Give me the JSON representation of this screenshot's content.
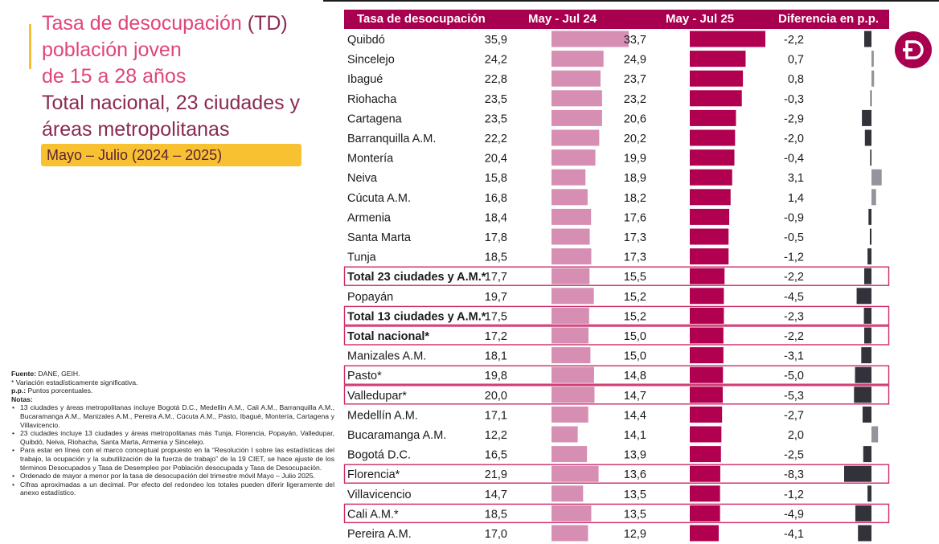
{
  "title": {
    "line1_pink": "Tasa de desocupación",
    "line1_dark": " (TD)",
    "line2": "población joven",
    "line3": "de 15 a 28 años",
    "line4": "Total nacional, 23 ciudades y",
    "line5": "áreas metropolitanas"
  },
  "period_label": "Mayo – Julio (2024 – 2025)",
  "notes": {
    "fuente_label": "Fuente:",
    "fuente_text": " DANE, GEIH.",
    "asterisk_text": "* Variación estadísticamente significativa.",
    "pp_label": "p.p.:",
    "pp_text": " Puntos porcentuales.",
    "notas_label": "Notas:",
    "bullet_symbol": "•",
    "items": [
      "13 ciudades y áreas metropolitanas incluye Bogotá D.C., Medellín A.M., Cali A.M., Barranquilla A.M., Bucaramanga A.M., Manizales A.M., Pereira A.M., Cúcuta A.M., Pasto, Ibagué, Montería, Cartagena y Villavicencio.",
      "23 ciudades incluye 13 ciudades y áreas metropolitanas más Tunja, Florencia, Popayán, Valledupar, Quibdó, Neiva, Riohacha, Santa Marta, Armenia y Sincelejo.",
      "Para estar en línea con el marco conceptual propuesto en la “Resolución I sobre las estadísticas del trabajo, la ocupación y la subutilización de la fuerza de trabajo” de la 19 CIET, se hace ajuste de los términos Desocupados y Tasa de Desempleo por Población desocupada y Tasa de Desocupación.",
      "Ordenado de mayor a menor por la tasa de desocupación del trimestre móvil Mayo – Julio 2025.",
      "Cifras aproximadas a un decimal. Por efecto del redondeo los totales pueden diferir ligeramente del anexo estadístico."
    ]
  },
  "chart_data": {
    "type": "bar",
    "columns": {
      "label": "Tasa de desocupación",
      "prev": "May - Jul 24",
      "curr": "May - Jul 25",
      "diff": "Diferencia en p.p."
    },
    "colors": {
      "header": "#a8004f",
      "prev_bar": "#d68fb3",
      "curr_bar": "#b0004f",
      "diff_neg": "#32323a",
      "diff_pos": "#95939b",
      "highlight_border": "#cc2b68"
    },
    "rows": [
      {
        "label": "Quibdó",
        "prev": "35,9",
        "curr": "33,7",
        "diff": "-2,2",
        "bold": false,
        "highlight": false
      },
      {
        "label": "Sincelejo",
        "prev": "24,2",
        "curr": "24,9",
        "diff": "0,7",
        "bold": false,
        "highlight": false
      },
      {
        "label": "Ibagué",
        "prev": "22,8",
        "curr": "23,7",
        "diff": "0,8",
        "bold": false,
        "highlight": false
      },
      {
        "label": "Riohacha",
        "prev": "23,5",
        "curr": "23,2",
        "diff": "-0,3",
        "bold": false,
        "highlight": false
      },
      {
        "label": "Cartagena",
        "prev": "23,5",
        "curr": "20,6",
        "diff": "-2,9",
        "bold": false,
        "highlight": false
      },
      {
        "label": "Barranquilla A.M.",
        "prev": "22,2",
        "curr": "20,2",
        "diff": "-2,0",
        "bold": false,
        "highlight": false
      },
      {
        "label": "Montería",
        "prev": "20,4",
        "curr": "19,9",
        "diff": "-0,4",
        "bold": false,
        "highlight": false
      },
      {
        "label": "Neiva",
        "prev": "15,8",
        "curr": "18,9",
        "diff": "3,1",
        "bold": false,
        "highlight": false
      },
      {
        "label": "Cúcuta A.M.",
        "prev": "16,8",
        "curr": "18,2",
        "diff": "1,4",
        "bold": false,
        "highlight": false
      },
      {
        "label": "Armenia",
        "prev": "18,4",
        "curr": "17,6",
        "diff": "-0,9",
        "bold": false,
        "highlight": false
      },
      {
        "label": "Santa Marta",
        "prev": "17,8",
        "curr": "17,3",
        "diff": "-0,5",
        "bold": false,
        "highlight": false
      },
      {
        "label": "Tunja",
        "prev": "18,5",
        "curr": "17,3",
        "diff": "-1,2",
        "bold": false,
        "highlight": false
      },
      {
        "label": "Total 23 ciudades y A.M.*",
        "prev": "17,7",
        "curr": "15,5",
        "diff": "-2,2",
        "bold": true,
        "highlight": true
      },
      {
        "label": "Popayán",
        "prev": "19,7",
        "curr": "15,2",
        "diff": "-4,5",
        "bold": false,
        "highlight": false
      },
      {
        "label": "Total 13 ciudades y A.M.*",
        "prev": "17,5",
        "curr": "15,2",
        "diff": "-2,3",
        "bold": true,
        "highlight": true
      },
      {
        "label": "Total nacional*",
        "prev": "17,2",
        "curr": "15,0",
        "diff": "-2,2",
        "bold": true,
        "highlight": true
      },
      {
        "label": "Manizales A.M.",
        "prev": "18,1",
        "curr": "15,0",
        "diff": "-3,1",
        "bold": false,
        "highlight": false
      },
      {
        "label": "Pasto*",
        "prev": "19,8",
        "curr": "14,8",
        "diff": "-5,0",
        "bold": false,
        "highlight": true
      },
      {
        "label": "Valledupar*",
        "prev": "20,0",
        "curr": "14,7",
        "diff": "-5,3",
        "bold": false,
        "highlight": true
      },
      {
        "label": "Medellín A.M.",
        "prev": "17,1",
        "curr": "14,4",
        "diff": "-2,7",
        "bold": false,
        "highlight": false
      },
      {
        "label": "Bucaramanga A.M.",
        "prev": "12,2",
        "curr": "14,1",
        "diff": "2,0",
        "bold": false,
        "highlight": false
      },
      {
        "label": "Bogotá D.C.",
        "prev": "16,5",
        "curr": "13,9",
        "diff": "-2,5",
        "bold": false,
        "highlight": false
      },
      {
        "label": "Florencia*",
        "prev": "21,9",
        "curr": "13,6",
        "diff": "-8,3",
        "bold": false,
        "highlight": true
      },
      {
        "label": "Villavicencio",
        "prev": "14,7",
        "curr": "13,5",
        "diff": "-1,2",
        "bold": false,
        "highlight": false
      },
      {
        "label": "Cali A.M.*",
        "prev": "18,5",
        "curr": "13,5",
        "diff": "-4,9",
        "bold": false,
        "highlight": true
      },
      {
        "label": "Pereira A.M.",
        "prev": "17,0",
        "curr": "12,9",
        "diff": "-4,1",
        "bold": false,
        "highlight": false
      }
    ]
  }
}
